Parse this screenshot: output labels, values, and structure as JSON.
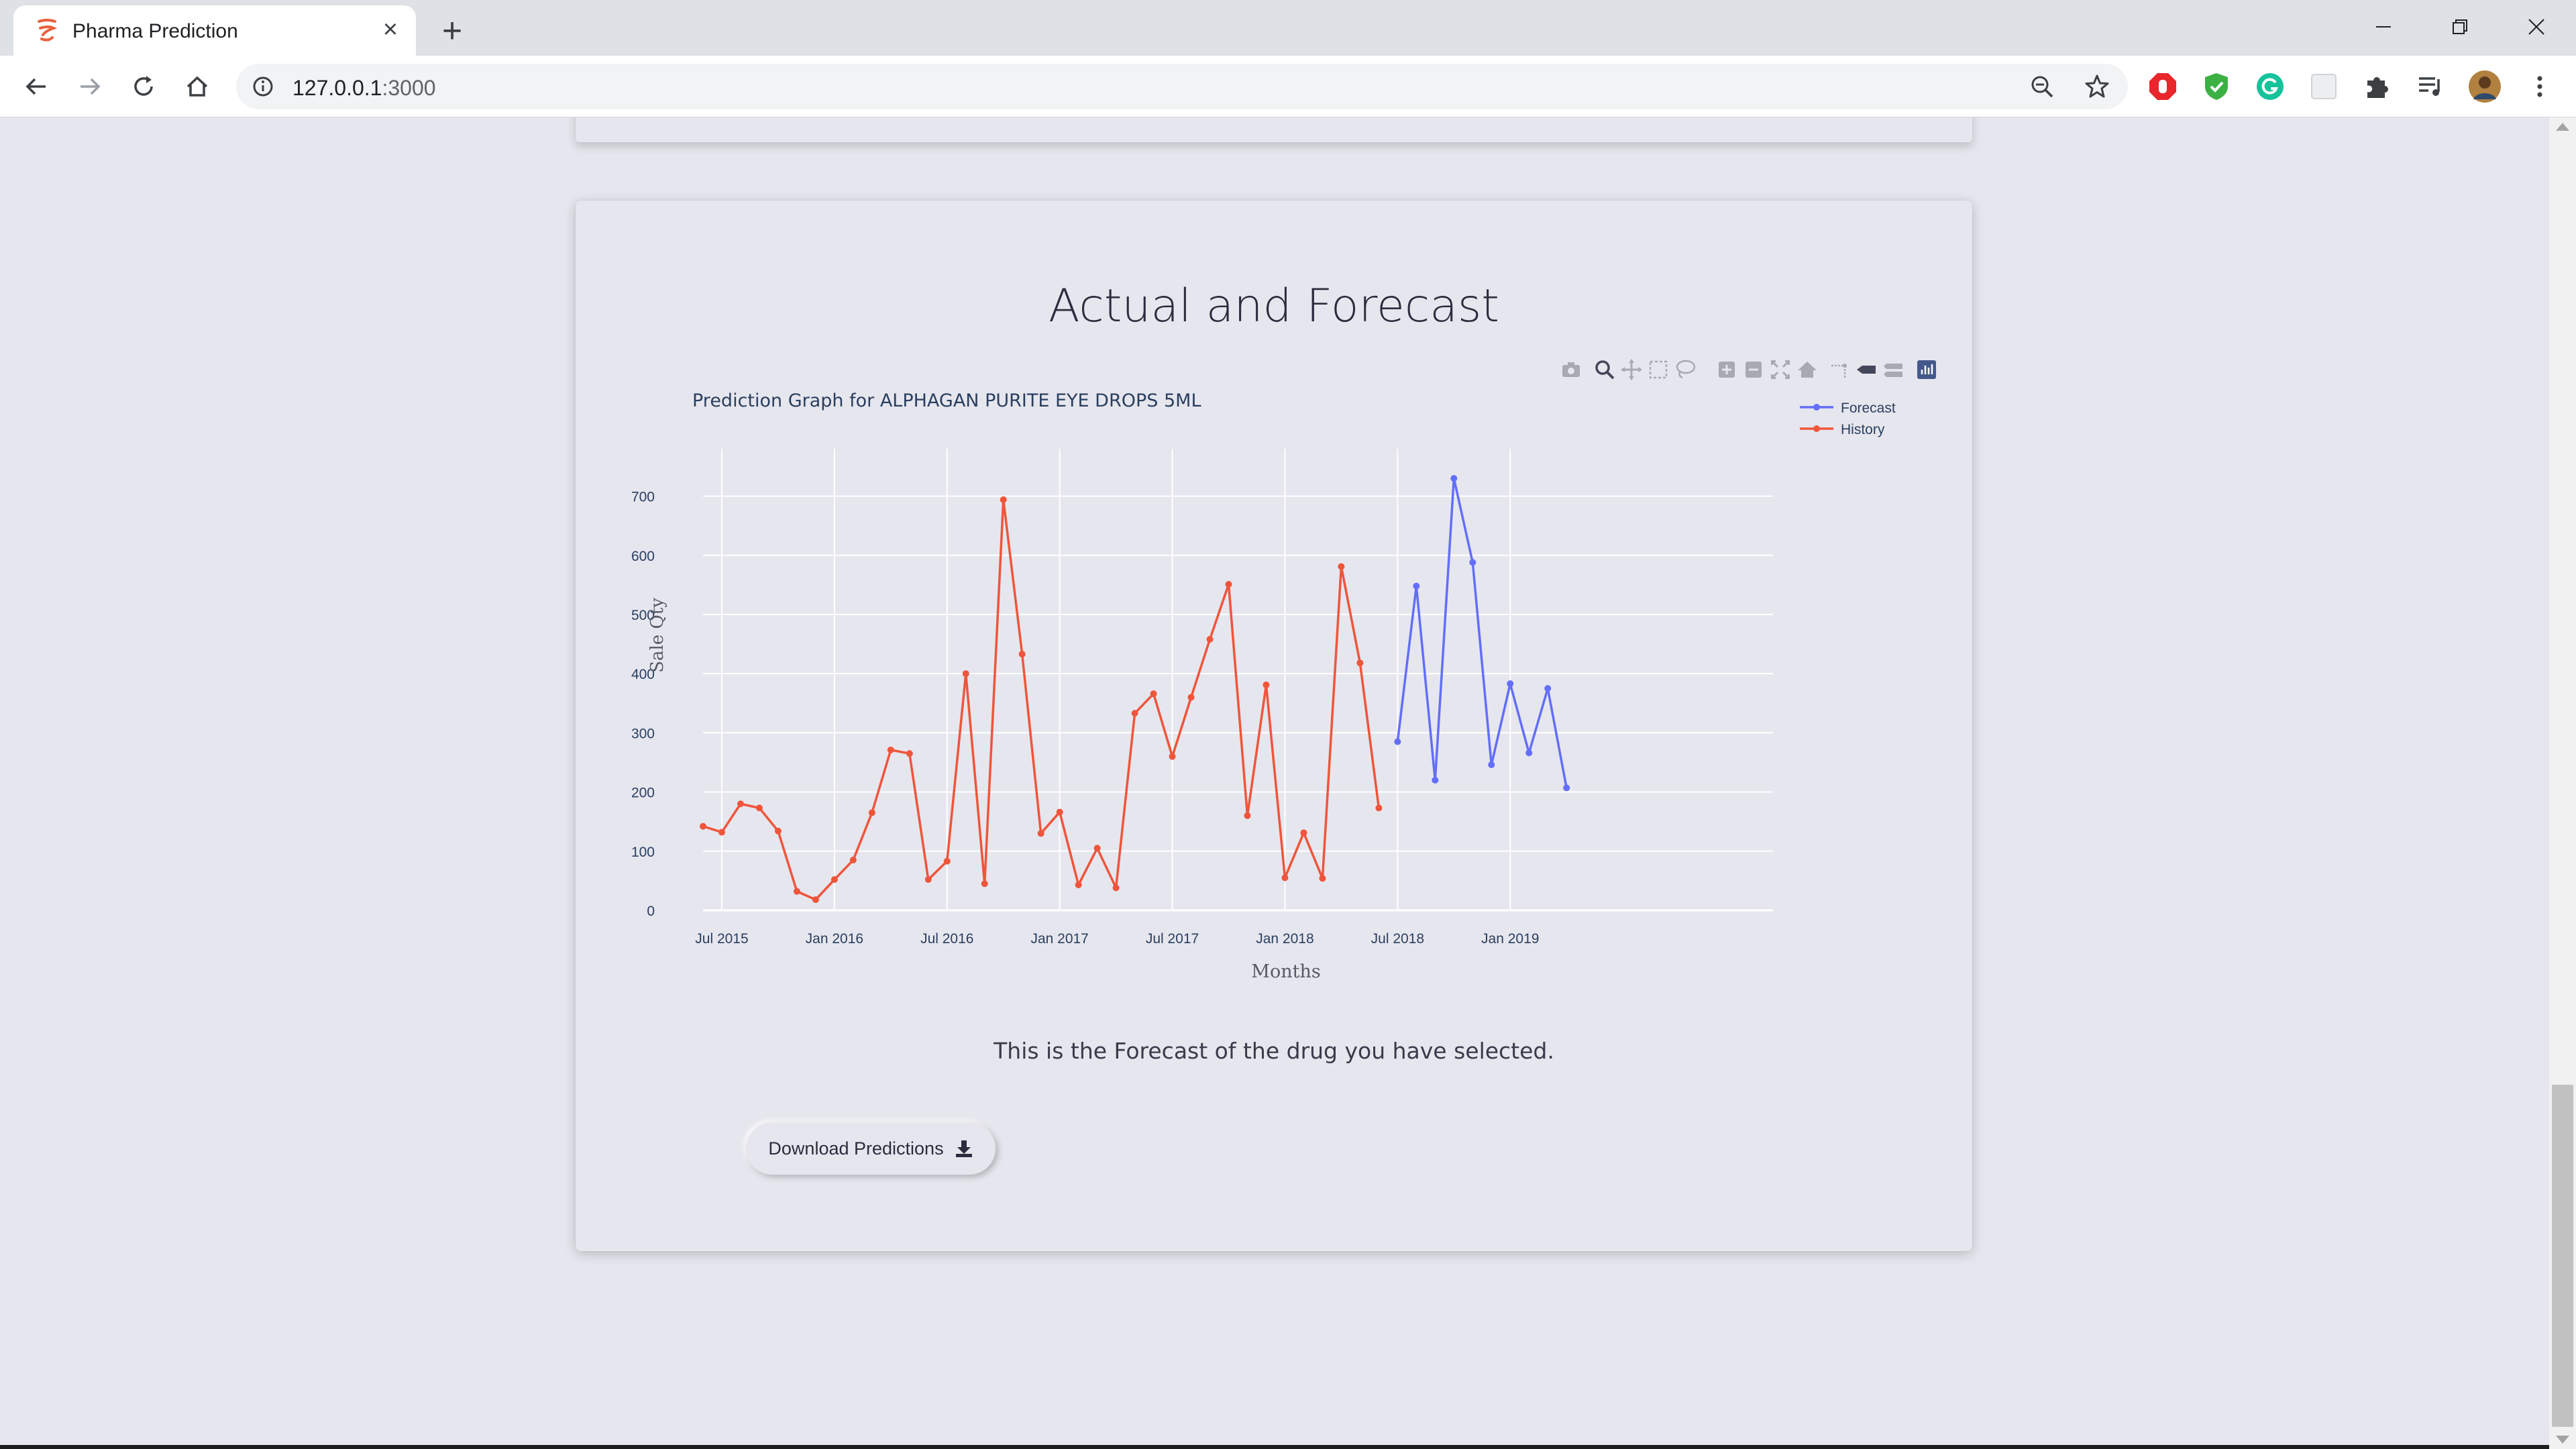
{
  "browser": {
    "tab_title": "Pharma Prediction",
    "url_host": "127.0.0.1",
    "url_port": ":3000"
  },
  "page": {
    "card_title": "Actual and Forecast",
    "caption": "This is the Forecast of the drug you have selected.",
    "download_label": "Download Predictions"
  },
  "chart_data": {
    "type": "line",
    "title": "Prediction Graph for ALPHAGAN PURITE EYE DROPS 5ML",
    "xlabel": "Months",
    "ylabel": "Sale Qty",
    "ylim": [
      0,
      780
    ],
    "yticks": [
      0,
      100,
      200,
      300,
      400,
      500,
      600,
      700
    ],
    "xticks": [
      "Jul 2015",
      "Jan 2016",
      "Jul 2016",
      "Jan 2017",
      "Jul 2017",
      "Jan 2018",
      "Jul 2018",
      "Jan 2019"
    ],
    "xstart": "2015-06",
    "grid": true,
    "legend_position": "top-right",
    "series": [
      {
        "name": "Forecast",
        "color": "#636efa",
        "start": "2018-07",
        "values": [
          285,
          548,
          220,
          730,
          588,
          246,
          383,
          266,
          375,
          207
        ]
      },
      {
        "name": "History",
        "color": "#ef553b",
        "start": "2015-06",
        "values": [
          142,
          132,
          180,
          173,
          134,
          32,
          18,
          52,
          85,
          165,
          271,
          265,
          52,
          83,
          400,
          45,
          694,
          433,
          130,
          166,
          43,
          105,
          38,
          333,
          366,
          260,
          360,
          458,
          551,
          160,
          381,
          55,
          131,
          54,
          581,
          418,
          173
        ]
      }
    ]
  }
}
